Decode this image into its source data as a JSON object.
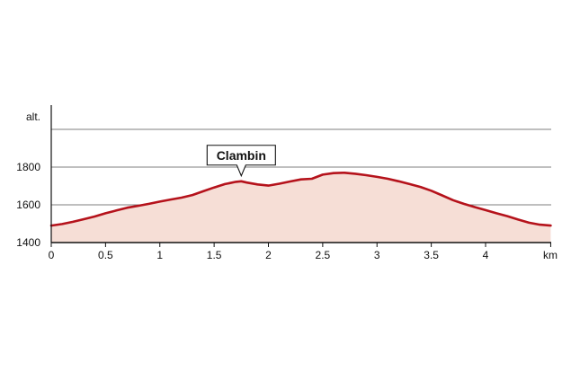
{
  "chart_data": {
    "type": "area",
    "xlabel": "km",
    "ylabel": "alt.",
    "xlim": [
      0,
      4.6
    ],
    "ylim": [
      1400,
      2000
    ],
    "x_ticks": [
      0,
      0.5,
      1,
      1.5,
      2,
      2.5,
      3,
      3.5,
      4
    ],
    "x_tick_labels": [
      "0",
      "0.5",
      "1",
      "1.5",
      "2",
      "2.5",
      "3",
      "3.5",
      "4"
    ],
    "y_ticks": [
      1400,
      1600,
      1800
    ],
    "y_tick_labels": [
      "1400",
      "1600",
      "1800"
    ],
    "grid": true,
    "colors": {
      "line": "#b5121b",
      "fill": "#f6ded6",
      "grid": "#555555",
      "axis": "#111111"
    },
    "x": [
      0,
      0.1,
      0.2,
      0.3,
      0.4,
      0.5,
      0.6,
      0.7,
      0.8,
      0.9,
      1.0,
      1.1,
      1.2,
      1.3,
      1.4,
      1.5,
      1.6,
      1.7,
      1.75,
      1.8,
      1.9,
      2.0,
      2.1,
      2.2,
      2.3,
      2.4,
      2.5,
      2.6,
      2.7,
      2.8,
      2.9,
      3.0,
      3.1,
      3.2,
      3.3,
      3.4,
      3.5,
      3.6,
      3.7,
      3.8,
      3.9,
      4.0,
      4.1,
      4.2,
      4.3,
      4.4,
      4.5,
      4.6
    ],
    "series": [
      {
        "values": [
          1490,
          1498,
          1510,
          1524,
          1538,
          1555,
          1570,
          1585,
          1595,
          1605,
          1617,
          1628,
          1638,
          1652,
          1672,
          1692,
          1710,
          1722,
          1725,
          1718,
          1708,
          1702,
          1712,
          1724,
          1735,
          1738,
          1760,
          1768,
          1770,
          1765,
          1757,
          1748,
          1738,
          1725,
          1710,
          1695,
          1675,
          1650,
          1625,
          1605,
          1588,
          1572,
          1555,
          1540,
          1522,
          1505,
          1495,
          1490
        ]
      }
    ],
    "annotations": [
      {
        "text": "Clambin",
        "x": 1.75,
        "y": 1725
      }
    ]
  }
}
